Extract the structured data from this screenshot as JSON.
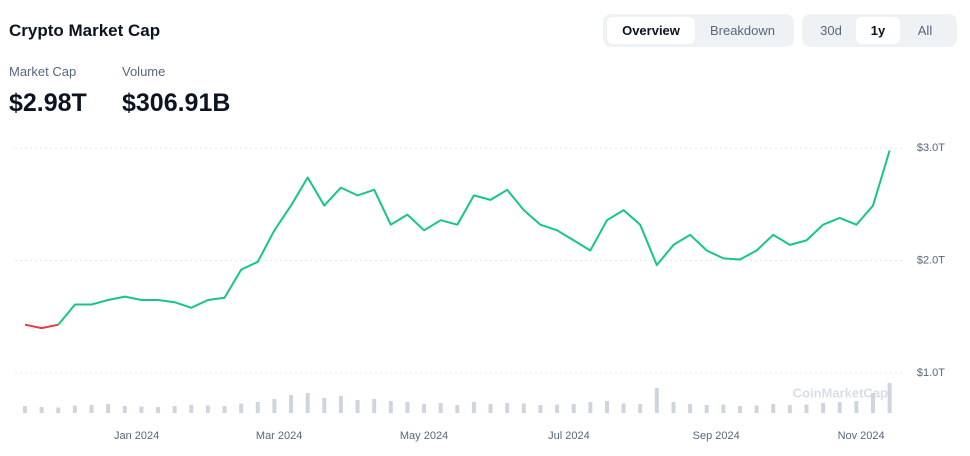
{
  "header": {
    "title": "Crypto Market Cap",
    "tabs": [
      "Overview",
      "Breakdown"
    ],
    "ranges": [
      "30d",
      "1y",
      "All"
    ],
    "stats": [
      {
        "label": "Market Cap",
        "value": "$2.98T"
      },
      {
        "label": "Volume",
        "value": "$306.91B"
      }
    ],
    "watermark": "CoinMarketCap"
  },
  "chart_data": {
    "type": "line",
    "x": [
      0,
      7,
      14,
      21,
      28,
      35,
      42,
      49,
      56,
      63,
      70,
      77,
      84,
      91,
      98,
      105,
      112,
      119,
      126,
      133,
      140,
      147,
      154,
      161,
      168,
      175,
      182,
      189,
      196,
      203,
      210,
      217,
      224,
      231,
      238,
      245,
      252,
      259,
      266,
      273,
      280,
      287,
      294,
      301,
      308,
      315,
      322,
      329,
      336,
      343,
      350,
      357,
      364
    ],
    "xlim": [
      0,
      365
    ],
    "xticks": [
      {
        "value": 47,
        "label": "Jan 2024"
      },
      {
        "value": 107,
        "label": "Mar 2024"
      },
      {
        "value": 168,
        "label": "May 2024"
      },
      {
        "value": 229,
        "label": "Jul 2024"
      },
      {
        "value": 291,
        "label": "Sep 2024"
      },
      {
        "value": 352,
        "label": "Nov 2024"
      }
    ],
    "ylim": [
      0.6,
      3.1
    ],
    "yticks": [
      {
        "value": 1,
        "label": "$1.0T"
      },
      {
        "value": 2,
        "label": "$2.0T"
      },
      {
        "value": 3,
        "label": "$3.0T"
      }
    ],
    "y2lim": [
      0,
      2800
    ],
    "grid": true,
    "series": [
      {
        "color": "#ea3943",
        "values": [
          1.43,
          1.4,
          1.43,
          null,
          null,
          null,
          null,
          null,
          null,
          null,
          null,
          null,
          null,
          null,
          null,
          null,
          null,
          null,
          null,
          null,
          null,
          null,
          null,
          null,
          null,
          null,
          null,
          null,
          null,
          null,
          null,
          null,
          null,
          null,
          null,
          null,
          null,
          null,
          null,
          null,
          null,
          null,
          null,
          null,
          null,
          null,
          null,
          null,
          null,
          null,
          null,
          null,
          null
        ]
      },
      {
        "color": "#16c784",
        "values": [
          null,
          null,
          1.43,
          1.61,
          1.61,
          1.65,
          1.68,
          1.65,
          1.65,
          1.63,
          1.58,
          1.65,
          1.67,
          1.92,
          1.99,
          2.27,
          2.49,
          2.74,
          2.49,
          2.65,
          2.58,
          2.63,
          2.32,
          2.41,
          2.27,
          2.36,
          2.32,
          2.58,
          2.54,
          2.63,
          2.45,
          2.32,
          2.27,
          2.18,
          2.09,
          2.36,
          2.45,
          2.32,
          1.96,
          2.14,
          2.23,
          2.09,
          2.02,
          2.01,
          2.09,
          2.23,
          2.14,
          2.18,
          2.32,
          2.38,
          2.32,
          2.49,
          2.98
        ]
      },
      {
        "color": "#cfd5df",
        "axis": "y2",
        "values": [
          70,
          60,
          55,
          75,
          80,
          90,
          70,
          65,
          60,
          70,
          80,
          75,
          70,
          95,
          110,
          140,
          180,
          200,
          150,
          170,
          130,
          140,
          120,
          110,
          90,
          100,
          80,
          110,
          90,
          100,
          95,
          80,
          85,
          90,
          110,
          120,
          95,
          90,
          250,
          110,
          90,
          80,
          85,
          70,
          75,
          90,
          80,
          85,
          100,
          110,
          120,
          200,
          300
        ]
      }
    ]
  }
}
